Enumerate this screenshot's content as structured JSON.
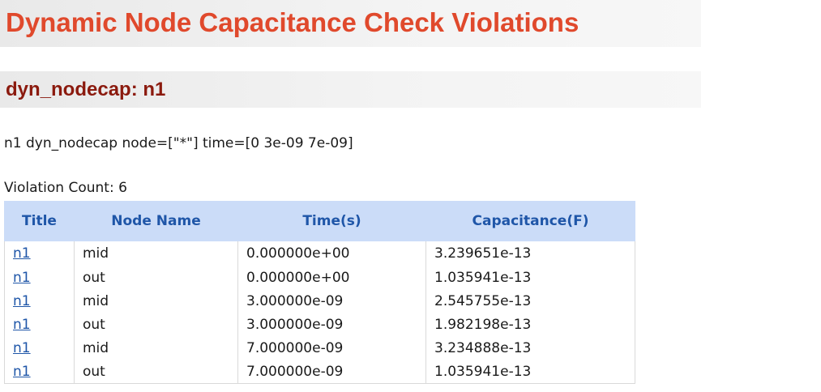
{
  "page": {
    "title": "Dynamic Node Capacitance Check Violations"
  },
  "section": {
    "title": "dyn_nodecap: n1",
    "command": "n1 dyn_nodecap node=[\"*\"] time=[0 3e-09 7e-09]",
    "violation_count_text": "Violation Count: 6"
  },
  "table": {
    "headers": [
      "Title",
      "Node Name",
      "Time(s)",
      "Capacitance(F)"
    ],
    "rows": [
      {
        "title": "n1",
        "node": "mid",
        "time": "0.000000e+00",
        "capacitance": "3.239651e-13"
      },
      {
        "title": "n1",
        "node": "out",
        "time": "0.000000e+00",
        "capacitance": "1.035941e-13"
      },
      {
        "title": "n1",
        "node": "mid",
        "time": "3.000000e-09",
        "capacitance": "2.545755e-13"
      },
      {
        "title": "n1",
        "node": "out",
        "time": "3.000000e-09",
        "capacitance": "1.982198e-13"
      },
      {
        "title": "n1",
        "node": "mid",
        "time": "7.000000e-09",
        "capacitance": "3.234888e-13"
      },
      {
        "title": "n1",
        "node": "out",
        "time": "7.000000e-09",
        "capacitance": "1.035941e-13"
      }
    ]
  },
  "colors": {
    "page_title": "#e0492c",
    "section_title": "#8b1a0e",
    "header_bg": "#cbdcf8",
    "header_text": "#1f56a8",
    "link": "#1f56a8"
  }
}
